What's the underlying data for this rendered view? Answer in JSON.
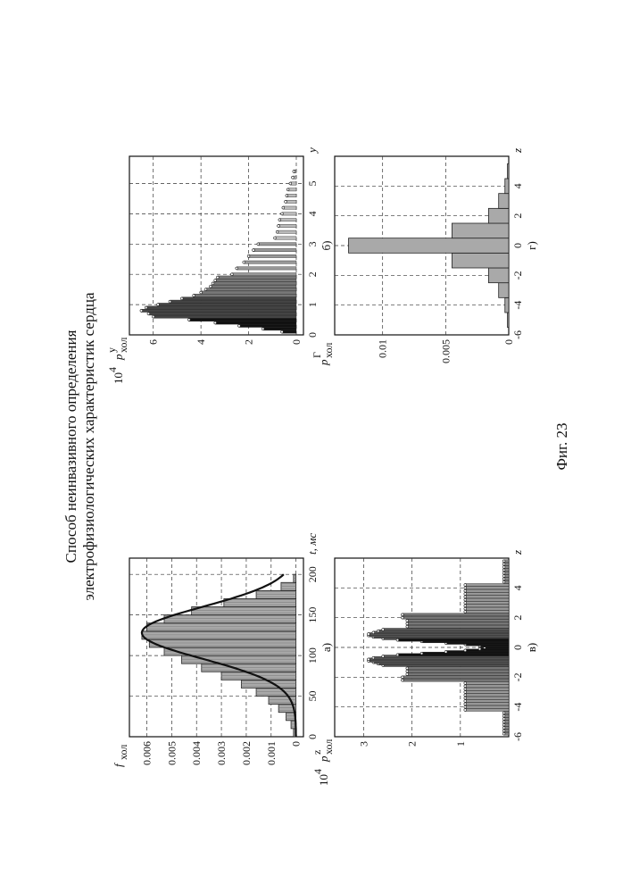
{
  "document": {
    "title_line1": "Способ неинвазивного определения",
    "title_line2": "электрофизиологических характеристик сердца",
    "figure_caption": "Фиг. 23"
  },
  "chart_data": [
    {
      "id": "a",
      "type": "bar",
      "subplot_label": "а)",
      "ylabel": "f",
      "ylabel_sub": "хол",
      "xlabel": "t, мс",
      "xlim": [
        0,
        220
      ],
      "ylim": [
        -0.0003,
        0.0067
      ],
      "xticks": [
        0,
        50,
        100,
        150,
        200
      ],
      "yticks": [
        0,
        0.001,
        0.002,
        0.003,
        0.004,
        0.005,
        0.006
      ],
      "ytick_labels": [
        "0",
        "0.001",
        "0.002",
        "0.003",
        "0.004",
        "0.005",
        "0.006"
      ],
      "grid": true,
      "bins_x": [
        0,
        10,
        20,
        30,
        40,
        50,
        60,
        70,
        80,
        90,
        100,
        110,
        120,
        130,
        140,
        150,
        160,
        170,
        180,
        190
      ],
      "bin_width": 10,
      "values": [
        0.0001,
        0.0002,
        0.0004,
        0.0007,
        0.0011,
        0.0016,
        0.0022,
        0.003,
        0.0038,
        0.0046,
        0.0053,
        0.0059,
        0.0062,
        0.006,
        0.0053,
        0.0042,
        0.0029,
        0.0016,
        0.0006,
        0.0001
      ],
      "curve": {
        "mean": 128,
        "sd": 32,
        "peak": 0.0062,
        "x_range": [
          0,
          200
        ]
      }
    },
    {
      "id": "b",
      "type": "bar",
      "subplot_label": "б)",
      "ylabel_factor": "10",
      "ylabel_factor_exp": "4",
      "ylabel": "p",
      "ylabel_sup": "y",
      "ylabel_sub": "хол",
      "xlabel": "y",
      "xlim": [
        0,
        5.9
      ],
      "ylim": [
        -0.3,
        7
      ],
      "xticks": [
        0,
        1,
        2,
        3,
        4,
        5
      ],
      "yticks": [
        0,
        2,
        4,
        6
      ],
      "grid": true,
      "series": [
        {
          "name": "",
          "x": [
            0.1,
            0.2,
            0.3,
            0.4,
            0.5
          ],
          "values": [
            0.6,
            1.4,
            2.4,
            3.4,
            4.5
          ]
        },
        {
          "name": "",
          "x": [
            0.6,
            0.7,
            0.8,
            0.9,
            1.0,
            1.1,
            1.2
          ],
          "values": [
            6.0,
            6.2,
            6.5,
            6.3,
            5.8,
            5.3,
            4.8
          ]
        },
        {
          "name": "",
          "x": [
            1.3,
            1.4,
            1.5,
            1.6,
            1.7,
            1.8,
            1.9
          ],
          "values": [
            4.3,
            4.0,
            3.8,
            3.6,
            3.5,
            3.4,
            3.3
          ]
        },
        {
          "name": "",
          "x": [
            2.0,
            2.2,
            2.4,
            2.6,
            2.8,
            3.0
          ],
          "values": [
            2.7,
            2.5,
            2.2,
            2.0,
            1.8,
            1.6
          ]
        },
        {
          "name": "",
          "x": [
            3.2,
            3.4,
            3.6,
            3.8,
            4.0,
            4.2,
            4.4,
            4.6,
            4.8,
            5.0,
            5.2,
            5.4
          ],
          "values": [
            0.9,
            0.8,
            0.75,
            0.7,
            0.6,
            0.55,
            0.45,
            0.4,
            0.35,
            0.25,
            0.15,
            0.1
          ]
        }
      ]
    },
    {
      "id": "c",
      "type": "bar",
      "subplot_label": "в)",
      "ylabel_factor": "10",
      "ylabel_factor_exp": "4",
      "ylabel": "p",
      "ylabel_sup": "z",
      "ylabel_sub": "хол",
      "xlabel": "z",
      "xlim": [
        -6,
        6
      ],
      "ylim": [
        0,
        3.6
      ],
      "xticks": [
        -6,
        -4,
        -2,
        0,
        2,
        4
      ],
      "yticks": [
        1,
        2,
        3
      ],
      "grid": true,
      "series": [
        {
          "name": "",
          "x": [
            -5.8,
            -5.6,
            -5.4,
            -5.2,
            -5.0,
            -4.8,
            -4.6,
            -4.4,
            4.4,
            4.6,
            4.8,
            5.0,
            5.2,
            5.4,
            5.6,
            5.8
          ],
          "values": [
            0.1,
            0.1,
            0.1,
            0.1,
            0.1,
            0.1,
            0.1,
            0.1,
            0.1,
            0.1,
            0.1,
            0.1,
            0.1,
            0.1,
            0.1,
            0.1
          ]
        },
        {
          "name": "",
          "x": [
            -4.2,
            -4.0,
            -3.8,
            -3.6,
            -3.4,
            -3.2,
            -3.0,
            -2.8,
            -2.6,
            -2.4,
            2.4,
            2.6,
            2.8,
            3.0,
            3.2,
            3.4,
            3.6,
            3.8,
            4.0,
            4.2
          ],
          "values": [
            0.9,
            0.9,
            0.9,
            0.9,
            0.9,
            0.9,
            0.9,
            0.9,
            0.9,
            0.9,
            0.9,
            0.9,
            0.9,
            0.9,
            0.9,
            0.9,
            0.9,
            0.9,
            0.9,
            0.9
          ]
        },
        {
          "name": "",
          "x": [
            -2.2,
            -2.0,
            -1.8,
            -1.6,
            -1.4,
            1.4,
            1.6,
            1.8,
            2.0,
            2.2
          ],
          "values": [
            2.2,
            2.2,
            2.1,
            2.1,
            2.1,
            2.1,
            2.1,
            2.1,
            2.2,
            2.2
          ]
        },
        {
          "name": "",
          "x": [
            -1.2,
            -1.1,
            -1.0,
            -0.9,
            -0.8,
            -0.7,
            -0.6,
            0.6,
            0.7,
            0.8,
            0.9,
            1.0,
            1.1,
            1.2
          ],
          "values": [
            2.6,
            2.7,
            2.8,
            2.9,
            2.9,
            2.8,
            2.6,
            2.6,
            2.8,
            2.9,
            2.9,
            2.8,
            2.7,
            2.6
          ]
        },
        {
          "name": "",
          "x": [
            -0.5,
            -0.4,
            -0.3,
            -0.2,
            -0.1,
            0.0,
            0.1,
            0.2,
            0.3,
            0.4,
            0.5
          ],
          "values": [
            2.3,
            1.8,
            1.3,
            0.9,
            0.6,
            0.5,
            0.6,
            0.9,
            1.3,
            1.8,
            2.3
          ]
        }
      ]
    },
    {
      "id": "d",
      "type": "bar",
      "subplot_label": "г)",
      "ylabel": "p",
      "ylabel_sup": "Г",
      "ylabel_sub": "хол",
      "xlabel": "z",
      "xlim": [
        -6,
        6
      ],
      "ylim": [
        0,
        0.0138
      ],
      "xticks": [
        -6,
        -4,
        -2,
        0,
        2,
        4
      ],
      "yticks": [
        0,
        0.005,
        0.01
      ],
      "ytick_labels": [
        "0",
        "0.005",
        "0.01"
      ],
      "grid": true,
      "bins_x": [
        -5,
        -4,
        -3,
        -2,
        -1,
        0,
        1,
        2,
        3,
        4,
        5
      ],
      "bin_width": 1,
      "values": [
        0.0001,
        0.0003,
        0.0008,
        0.0016,
        0.0045,
        0.0127,
        0.0045,
        0.0016,
        0.0008,
        0.0003,
        0.0001
      ]
    }
  ]
}
